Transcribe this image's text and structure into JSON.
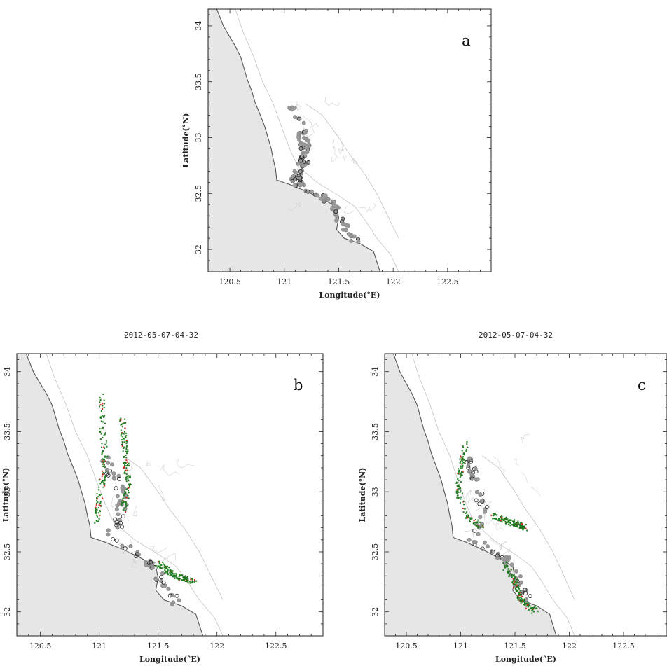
{
  "panels": [
    {
      "id": "a",
      "letter": "a",
      "title": "",
      "xlabel": "Longitude(°E)",
      "ylabel": "Latitude(°N)",
      "x_ticks": [
        "120.5",
        "121",
        "121.5",
        "122",
        "122.5"
      ],
      "y_ticks": [
        "32",
        "32.5",
        "33",
        "33.5",
        "34"
      ]
    },
    {
      "id": "b",
      "letter": "b",
      "title": "2012-05-07-04-32",
      "xlabel": "Longitude(°E)",
      "ylabel": "Latitude(°N)",
      "x_ticks": [
        "120.5",
        "121",
        "121.5",
        "122",
        "122.5"
      ],
      "y_ticks": [
        "32",
        "32.5",
        "33",
        "33.5",
        "34"
      ]
    },
    {
      "id": "c",
      "letter": "c",
      "title": "2012-05-07-04-32",
      "xlabel": "Longitude(°E)",
      "ylabel": "Latitude(°N)",
      "x_ticks": [
        "120.5",
        "121",
        "121.5",
        "122",
        "122.5"
      ],
      "y_ticks": [
        "32",
        "32.5",
        "33",
        "33.5",
        "34"
      ]
    }
  ],
  "map_extent": {
    "lon": [
      120.3,
      122.9
    ],
    "lat": [
      31.8,
      34.15
    ]
  },
  "colors": {
    "land": "#e6e6e6",
    "coastline": "#555555",
    "isobath": "#bbbbbb",
    "obs_marker": "#9a9a9a",
    "obs_outline": "#222222",
    "model_green": "#1d7a1d",
    "model_red": "#d62020"
  }
}
